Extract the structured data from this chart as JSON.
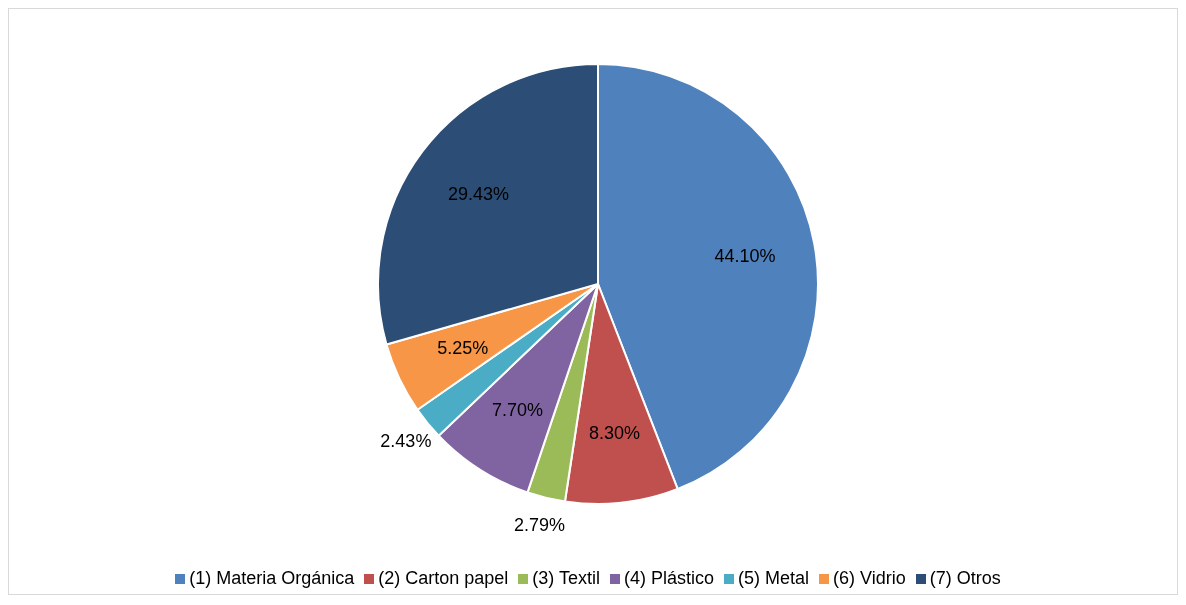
{
  "chart_data": {
    "type": "pie",
    "categories": [
      "(1) Materia Orgánica",
      "(2) Carton papel",
      "(3) Textil",
      "(4) Plástico",
      "(5) Metal",
      "(6) Vidrio",
      "(7) Otros"
    ],
    "values": [
      44.1,
      8.3,
      2.79,
      7.7,
      2.43,
      5.25,
      29.43
    ],
    "colors": [
      "#4f81bd",
      "#c0504d",
      "#9bbb59",
      "#8064a2",
      "#4bacc6",
      "#f79646",
      "#2c4d75"
    ],
    "value_labels": [
      "44.10%",
      "8.30%",
      "2.79%",
      "7.70%",
      "2.43%",
      "5.25%",
      "29.43%"
    ],
    "legend": "bottom"
  }
}
